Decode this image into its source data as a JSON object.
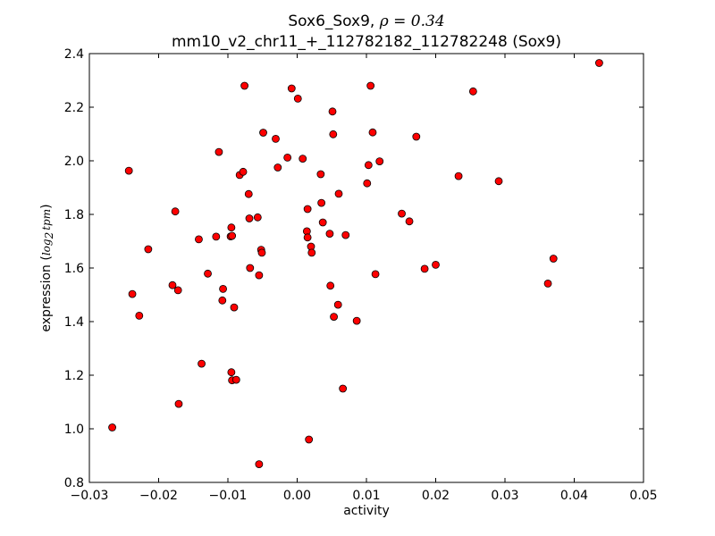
{
  "chart_data": {
    "type": "scatter",
    "title_line1": "Sox6_Sox9, ",
    "title_rho": "ρ",
    "title_eq": " = 0.34",
    "title_line2": "mm10_v2_chr11_+_112782182_112782248 (Sox9)",
    "xlabel": "activity",
    "ylabel_prefix": "expression (",
    "ylabel_math": "log",
    "ylabel_sub": "2",
    "ylabel_math2": "tpm",
    "ylabel_suffix": ")",
    "xlim": [
      -0.03,
      0.05
    ],
    "ylim": [
      0.8,
      2.4
    ],
    "xticks": [
      -0.03,
      -0.02,
      -0.01,
      0.0,
      0.01,
      0.02,
      0.03,
      0.04,
      0.05
    ],
    "xtick_labels": [
      "−0.03",
      "−0.02",
      "−0.01",
      "0.00",
      "0.01",
      "0.02",
      "0.03",
      "0.04",
      "0.05"
    ],
    "yticks": [
      0.8,
      1.0,
      1.2,
      1.4,
      1.6,
      1.8,
      2.0,
      2.2,
      2.4
    ],
    "ytick_labels": [
      "0.8",
      "1.0",
      "1.2",
      "1.4",
      "1.6",
      "1.8",
      "2.0",
      "2.2",
      "2.4"
    ],
    "grid": false,
    "marker_color": "#ff0000",
    "marker_edge": "#000000",
    "points": [
      [
        -0.0267,
        1.005
      ],
      [
        -0.0243,
        1.963
      ],
      [
        -0.0238,
        1.503
      ],
      [
        -0.0228,
        1.422
      ],
      [
        -0.0215,
        1.67
      ],
      [
        -0.018,
        1.536
      ],
      [
        -0.0176,
        1.811
      ],
      [
        -0.0172,
        1.517
      ],
      [
        -0.0171,
        1.093
      ],
      [
        -0.0142,
        1.707
      ],
      [
        -0.0138,
        1.243
      ],
      [
        -0.0129,
        1.579
      ],
      [
        -0.0117,
        1.717
      ],
      [
        -0.0113,
        2.033
      ],
      [
        -0.0108,
        1.479
      ],
      [
        -0.0107,
        1.522
      ],
      [
        -0.0096,
        1.718
      ],
      [
        -0.0095,
        1.751
      ],
      [
        -0.0095,
        1.211
      ],
      [
        -0.0094,
        1.72
      ],
      [
        -0.0094,
        1.181
      ],
      [
        -0.0091,
        1.453
      ],
      [
        -0.0088,
        1.183
      ],
      [
        -0.0083,
        1.947
      ],
      [
        -0.0078,
        1.959
      ],
      [
        -0.0076,
        2.28
      ],
      [
        -0.007,
        1.876
      ],
      [
        -0.0069,
        1.785
      ],
      [
        -0.0068,
        1.6
      ],
      [
        -0.0057,
        1.789
      ],
      [
        -0.0055,
        0.868
      ],
      [
        -0.0055,
        1.573
      ],
      [
        -0.0052,
        1.668
      ],
      [
        -0.0051,
        1.657
      ],
      [
        -0.0049,
        2.105
      ],
      [
        -0.0031,
        2.082
      ],
      [
        -0.0028,
        1.975
      ],
      [
        -0.0014,
        2.012
      ],
      [
        -0.0008,
        2.27
      ],
      [
        0.0001,
        2.232
      ],
      [
        0.0008,
        2.008
      ],
      [
        0.0014,
        1.737
      ],
      [
        0.0015,
        1.714
      ],
      [
        0.0015,
        1.82
      ],
      [
        0.0017,
        0.96
      ],
      [
        0.002,
        1.68
      ],
      [
        0.0021,
        1.657
      ],
      [
        0.0034,
        1.95
      ],
      [
        0.0035,
        1.843
      ],
      [
        0.0037,
        1.77
      ],
      [
        0.0047,
        1.728
      ],
      [
        0.0048,
        1.534
      ],
      [
        0.0051,
        2.184
      ],
      [
        0.0052,
        2.099
      ],
      [
        0.0053,
        1.418
      ],
      [
        0.0059,
        1.463
      ],
      [
        0.006,
        1.877
      ],
      [
        0.0066,
        1.15
      ],
      [
        0.007,
        1.723
      ],
      [
        0.0086,
        1.403
      ],
      [
        0.0101,
        1.916
      ],
      [
        0.0103,
        1.984
      ],
      [
        0.0106,
        2.28
      ],
      [
        0.0109,
        2.106
      ],
      [
        0.0113,
        1.577
      ],
      [
        0.0119,
        1.998
      ],
      [
        0.0151,
        1.803
      ],
      [
        0.0162,
        1.774
      ],
      [
        0.0172,
        2.09
      ],
      [
        0.0184,
        1.597
      ],
      [
        0.02,
        1.612
      ],
      [
        0.0233,
        1.943
      ],
      [
        0.0254,
        2.259
      ],
      [
        0.0291,
        1.924
      ],
      [
        0.0362,
        1.542
      ],
      [
        0.037,
        1.635
      ],
      [
        0.0436,
        2.365
      ]
    ]
  }
}
